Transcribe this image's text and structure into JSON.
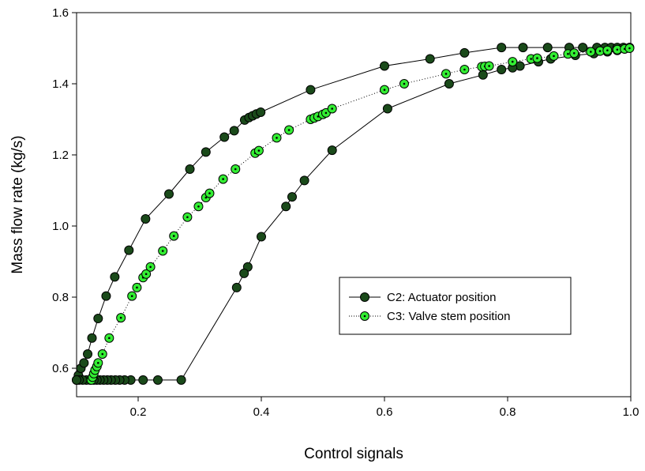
{
  "chart_data": {
    "type": "line",
    "title": "",
    "xlabel": "Control signals",
    "ylabel": "Mass flow rate (kg/s)",
    "xlim": [
      0.1,
      1.0
    ],
    "ylim": [
      0.52,
      1.6
    ],
    "x_ticks": [
      0.2,
      0.4,
      0.6,
      0.8,
      1.0
    ],
    "x_tick_labels": [
      "0.2",
      "0.4",
      "0.6",
      "0.8",
      "1.0"
    ],
    "y_ticks": [
      0.6,
      0.8,
      1.0,
      1.2,
      1.4,
      1.6
    ],
    "y_tick_labels": [
      "0.6",
      "0.8",
      "1.0",
      "1.2",
      "1.4",
      "1.6"
    ],
    "grid": false,
    "legend_position": "center-right",
    "series": [
      {
        "name": "C2: Actuator position",
        "line_style": "solid",
        "marker_fill": "#1a4a1a",
        "marker_dot": false,
        "points": [
          [
            0.1,
            0.567
          ],
          [
            0.103,
            0.58
          ],
          [
            0.107,
            0.6
          ],
          [
            0.112,
            0.615
          ],
          [
            0.118,
            0.64
          ],
          [
            0.125,
            0.685
          ],
          [
            0.135,
            0.74
          ],
          [
            0.148,
            0.803
          ],
          [
            0.162,
            0.857
          ],
          [
            0.185,
            0.932
          ],
          [
            0.212,
            1.02
          ],
          [
            0.25,
            1.09
          ],
          [
            0.284,
            1.16
          ],
          [
            0.31,
            1.208
          ],
          [
            0.34,
            1.25
          ],
          [
            0.356,
            1.268
          ],
          [
            0.373,
            1.298
          ],
          [
            0.38,
            1.305
          ],
          [
            0.386,
            1.31
          ],
          [
            0.392,
            1.315
          ],
          [
            0.399,
            1.32
          ],
          [
            0.48,
            1.383
          ],
          [
            0.6,
            1.45
          ],
          [
            0.674,
            1.47
          ],
          [
            0.73,
            1.487
          ],
          [
            0.79,
            1.502
          ],
          [
            0.825,
            1.502
          ],
          [
            0.865,
            1.502
          ],
          [
            0.9,
            1.502
          ],
          [
            0.922,
            1.502
          ],
          [
            0.945,
            1.502
          ],
          [
            0.958,
            1.502
          ],
          [
            0.968,
            1.502
          ],
          [
            0.978,
            1.502
          ],
          [
            0.988,
            1.502
          ],
          [
            0.998,
            1.502
          ],
          [
            0.99,
            1.498
          ],
          [
            0.978,
            1.494
          ],
          [
            0.962,
            1.49
          ],
          [
            0.94,
            1.485
          ],
          [
            0.91,
            1.48
          ],
          [
            0.87,
            1.47
          ],
          [
            0.85,
            1.462
          ],
          [
            0.82,
            1.45
          ],
          [
            0.808,
            1.445
          ],
          [
            0.79,
            1.44
          ],
          [
            0.76,
            1.425
          ],
          [
            0.705,
            1.4
          ],
          [
            0.605,
            1.33
          ],
          [
            0.515,
            1.213
          ],
          [
            0.47,
            1.128
          ],
          [
            0.45,
            1.082
          ],
          [
            0.44,
            1.055
          ],
          [
            0.4,
            0.97
          ],
          [
            0.378,
            0.885
          ],
          [
            0.372,
            0.867
          ],
          [
            0.36,
            0.827
          ],
          [
            0.27,
            0.567
          ],
          [
            0.232,
            0.567
          ],
          [
            0.208,
            0.567
          ],
          [
            0.188,
            0.567
          ],
          [
            0.178,
            0.567
          ],
          [
            0.17,
            0.567
          ],
          [
            0.163,
            0.567
          ],
          [
            0.156,
            0.567
          ],
          [
            0.15,
            0.567
          ],
          [
            0.144,
            0.567
          ],
          [
            0.138,
            0.567
          ],
          [
            0.133,
            0.567
          ],
          [
            0.128,
            0.567
          ],
          [
            0.122,
            0.567
          ],
          [
            0.116,
            0.567
          ],
          [
            0.11,
            0.567
          ],
          [
            0.104,
            0.567
          ],
          [
            0.1,
            0.567
          ]
        ]
      },
      {
        "name": "C3: Valve stem position",
        "line_style": "dotted",
        "marker_fill": "#33ee33",
        "marker_dot": true,
        "points": [
          [
            0.124,
            0.567
          ],
          [
            0.126,
            0.575
          ],
          [
            0.128,
            0.585
          ],
          [
            0.13,
            0.595
          ],
          [
            0.133,
            0.605
          ],
          [
            0.135,
            0.615
          ],
          [
            0.142,
            0.64
          ],
          [
            0.153,
            0.685
          ],
          [
            0.172,
            0.742
          ],
          [
            0.19,
            0.803
          ],
          [
            0.198,
            0.827
          ],
          [
            0.208,
            0.855
          ],
          [
            0.213,
            0.865
          ],
          [
            0.22,
            0.885
          ],
          [
            0.24,
            0.93
          ],
          [
            0.258,
            0.972
          ],
          [
            0.28,
            1.025
          ],
          [
            0.298,
            1.055
          ],
          [
            0.31,
            1.08
          ],
          [
            0.316,
            1.092
          ],
          [
            0.338,
            1.132
          ],
          [
            0.358,
            1.16
          ],
          [
            0.39,
            1.205
          ],
          [
            0.396,
            1.212
          ],
          [
            0.425,
            1.248
          ],
          [
            0.445,
            1.27
          ],
          [
            0.48,
            1.3
          ],
          [
            0.486,
            1.304
          ],
          [
            0.492,
            1.308
          ],
          [
            0.5,
            1.314
          ],
          [
            0.505,
            1.318
          ],
          [
            0.515,
            1.33
          ],
          [
            0.6,
            1.383
          ],
          [
            0.632,
            1.4
          ],
          [
            0.7,
            1.428
          ],
          [
            0.73,
            1.44
          ],
          [
            0.758,
            1.448
          ],
          [
            0.763,
            1.449
          ],
          [
            0.77,
            1.45
          ],
          [
            0.808,
            1.462
          ],
          [
            0.838,
            1.47
          ],
          [
            0.848,
            1.472
          ],
          [
            0.875,
            1.478
          ],
          [
            0.898,
            1.484
          ],
          [
            0.908,
            1.486
          ],
          [
            0.935,
            1.49
          ],
          [
            0.95,
            1.492
          ],
          [
            0.962,
            1.494
          ],
          [
            0.978,
            1.496
          ],
          [
            0.99,
            1.498
          ],
          [
            0.998,
            1.5
          ]
        ]
      }
    ]
  }
}
